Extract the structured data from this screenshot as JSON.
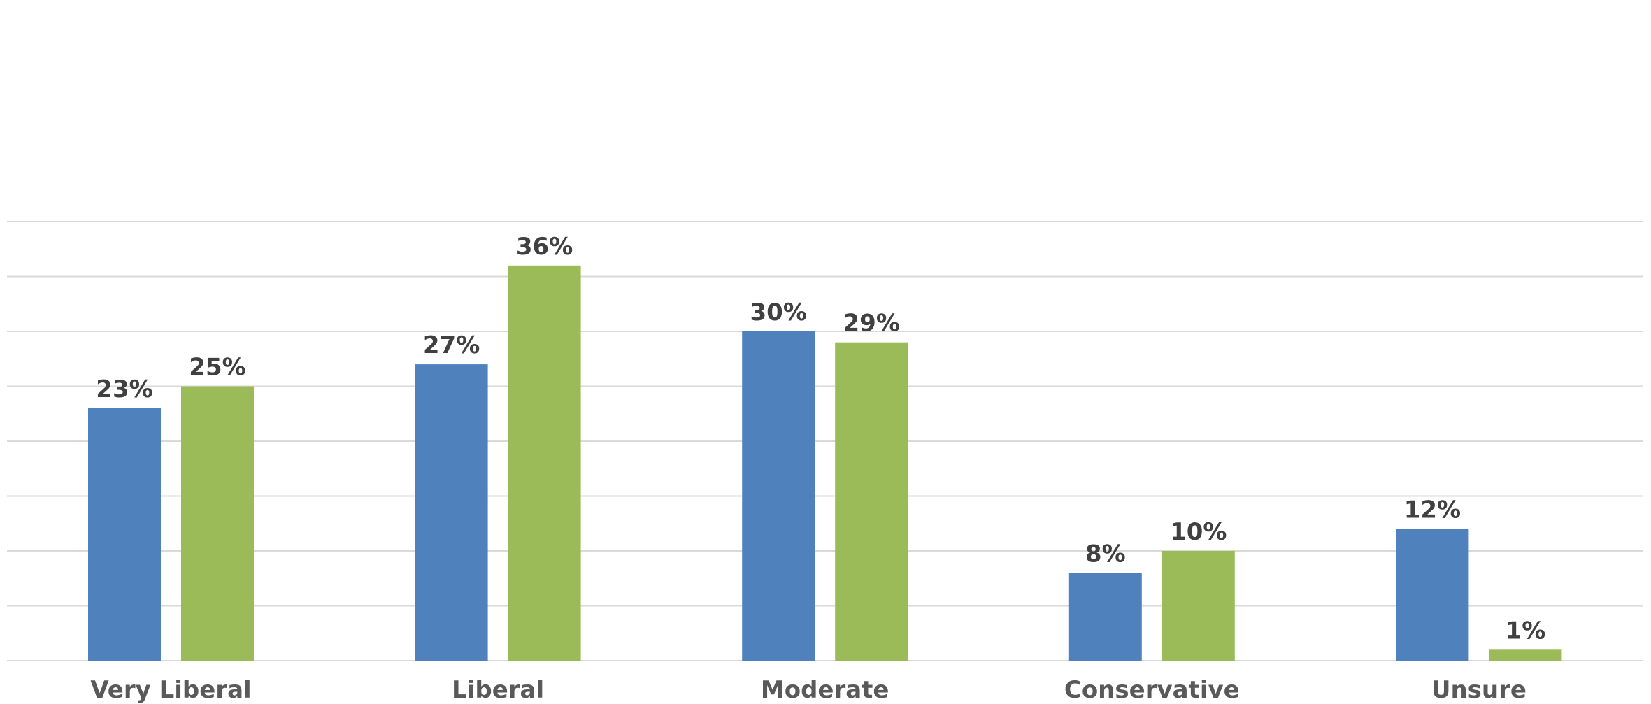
{
  "chart_data": {
    "type": "bar",
    "categories": [
      "Very Liberal",
      "Liberal",
      "Moderate",
      "Conservative",
      "Unsure"
    ],
    "series": [
      {
        "values": [
          23,
          27,
          30,
          8,
          12
        ],
        "labels": [
          "23%",
          "27%",
          "30%",
          "8%",
          "12%"
        ],
        "color": "#4f81bd"
      },
      {
        "values": [
          25,
          36,
          29,
          10,
          1
        ],
        "labels": [
          "25%",
          "36%",
          "29%",
          "10%",
          "1%"
        ],
        "color": "#9bbb59"
      }
    ],
    "ylim": [
      0,
      40
    ],
    "grid": true,
    "title": "",
    "xlabel": "",
    "ylabel": ""
  }
}
